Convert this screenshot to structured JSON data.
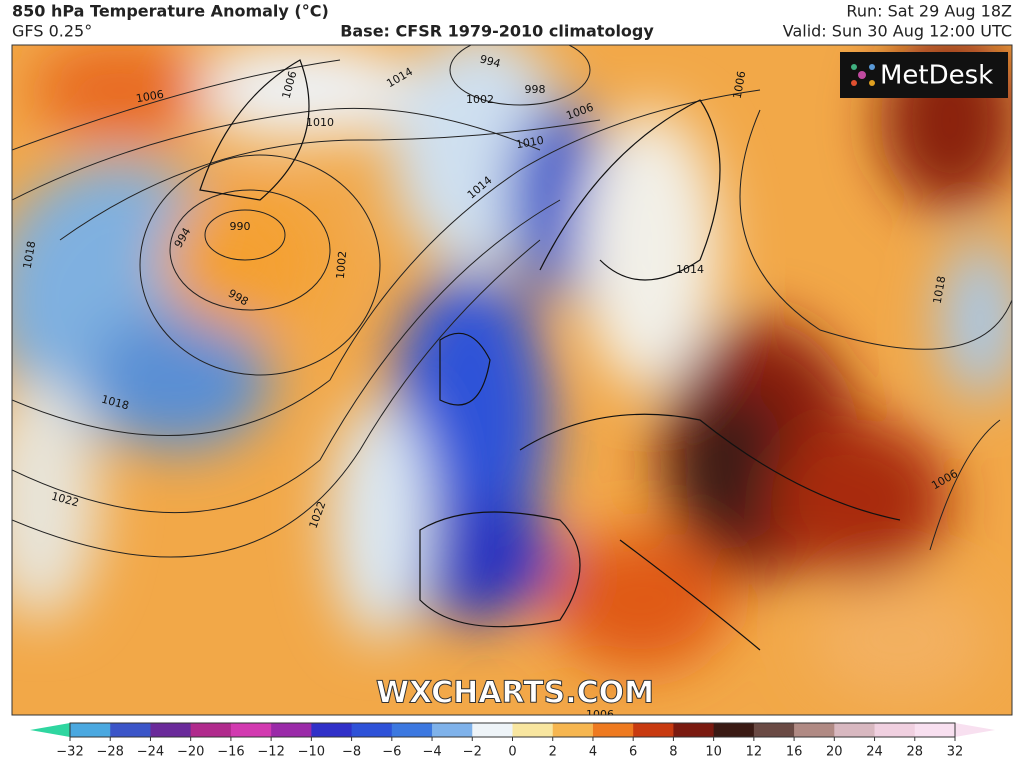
{
  "header": {
    "title": "850 hPa Temperature Anomaly (°C)",
    "model": "GFS 0.25°",
    "base": "Base: CFSR 1979-2010 climatology",
    "run": "Run: Sat 29 Aug 18Z",
    "valid": "Valid: Sun 30 Aug 12:00 UTC"
  },
  "logo": "MetDesk",
  "watermark": "WXCHARTS.COM",
  "isobar_labels": [
    "1006",
    "1018",
    "1006",
    "1014",
    "994",
    "998",
    "1002",
    "1006",
    "1010",
    "1014",
    "1010",
    "990",
    "994",
    "998",
    "1002",
    "1018",
    "1022",
    "1022",
    "1006",
    "1018",
    "1006",
    "1014",
    "1006"
  ],
  "colorbar": {
    "ticks": [
      {
        "value": -32,
        "label": "−32"
      },
      {
        "value": -28,
        "label": "−28"
      },
      {
        "value": -24,
        "label": "−24"
      },
      {
        "value": -20,
        "label": "−20"
      },
      {
        "value": -16,
        "label": "−16"
      },
      {
        "value": -12,
        "label": "−12"
      },
      {
        "value": -10,
        "label": "−10"
      },
      {
        "value": -8,
        "label": "−8"
      },
      {
        "value": -6,
        "label": "−6"
      },
      {
        "value": -4,
        "label": "−4"
      },
      {
        "value": -2,
        "label": "−2"
      },
      0,
      2,
      4,
      6,
      8,
      10,
      12,
      16,
      20,
      24,
      28,
      32
    ],
    "colors": [
      "#2fd6a0",
      "#4aa8e0",
      "#3b55c8",
      "#6a2a9a",
      "#b02a8c",
      "#d23ab0",
      "#9a2aa8",
      "#3030c8",
      "#2e52d8",
      "#3c78e0",
      "#7fb2ea",
      "#eef4f8",
      "#f8e6a0",
      "#f6b650",
      "#ee7a20",
      "#c83a10",
      "#7a1a10",
      "#3a1a14",
      "#6a4a44",
      "#b08a84",
      "#d8b8c0",
      "#f0d0e0",
      "#f8e0f0"
    ]
  }
}
